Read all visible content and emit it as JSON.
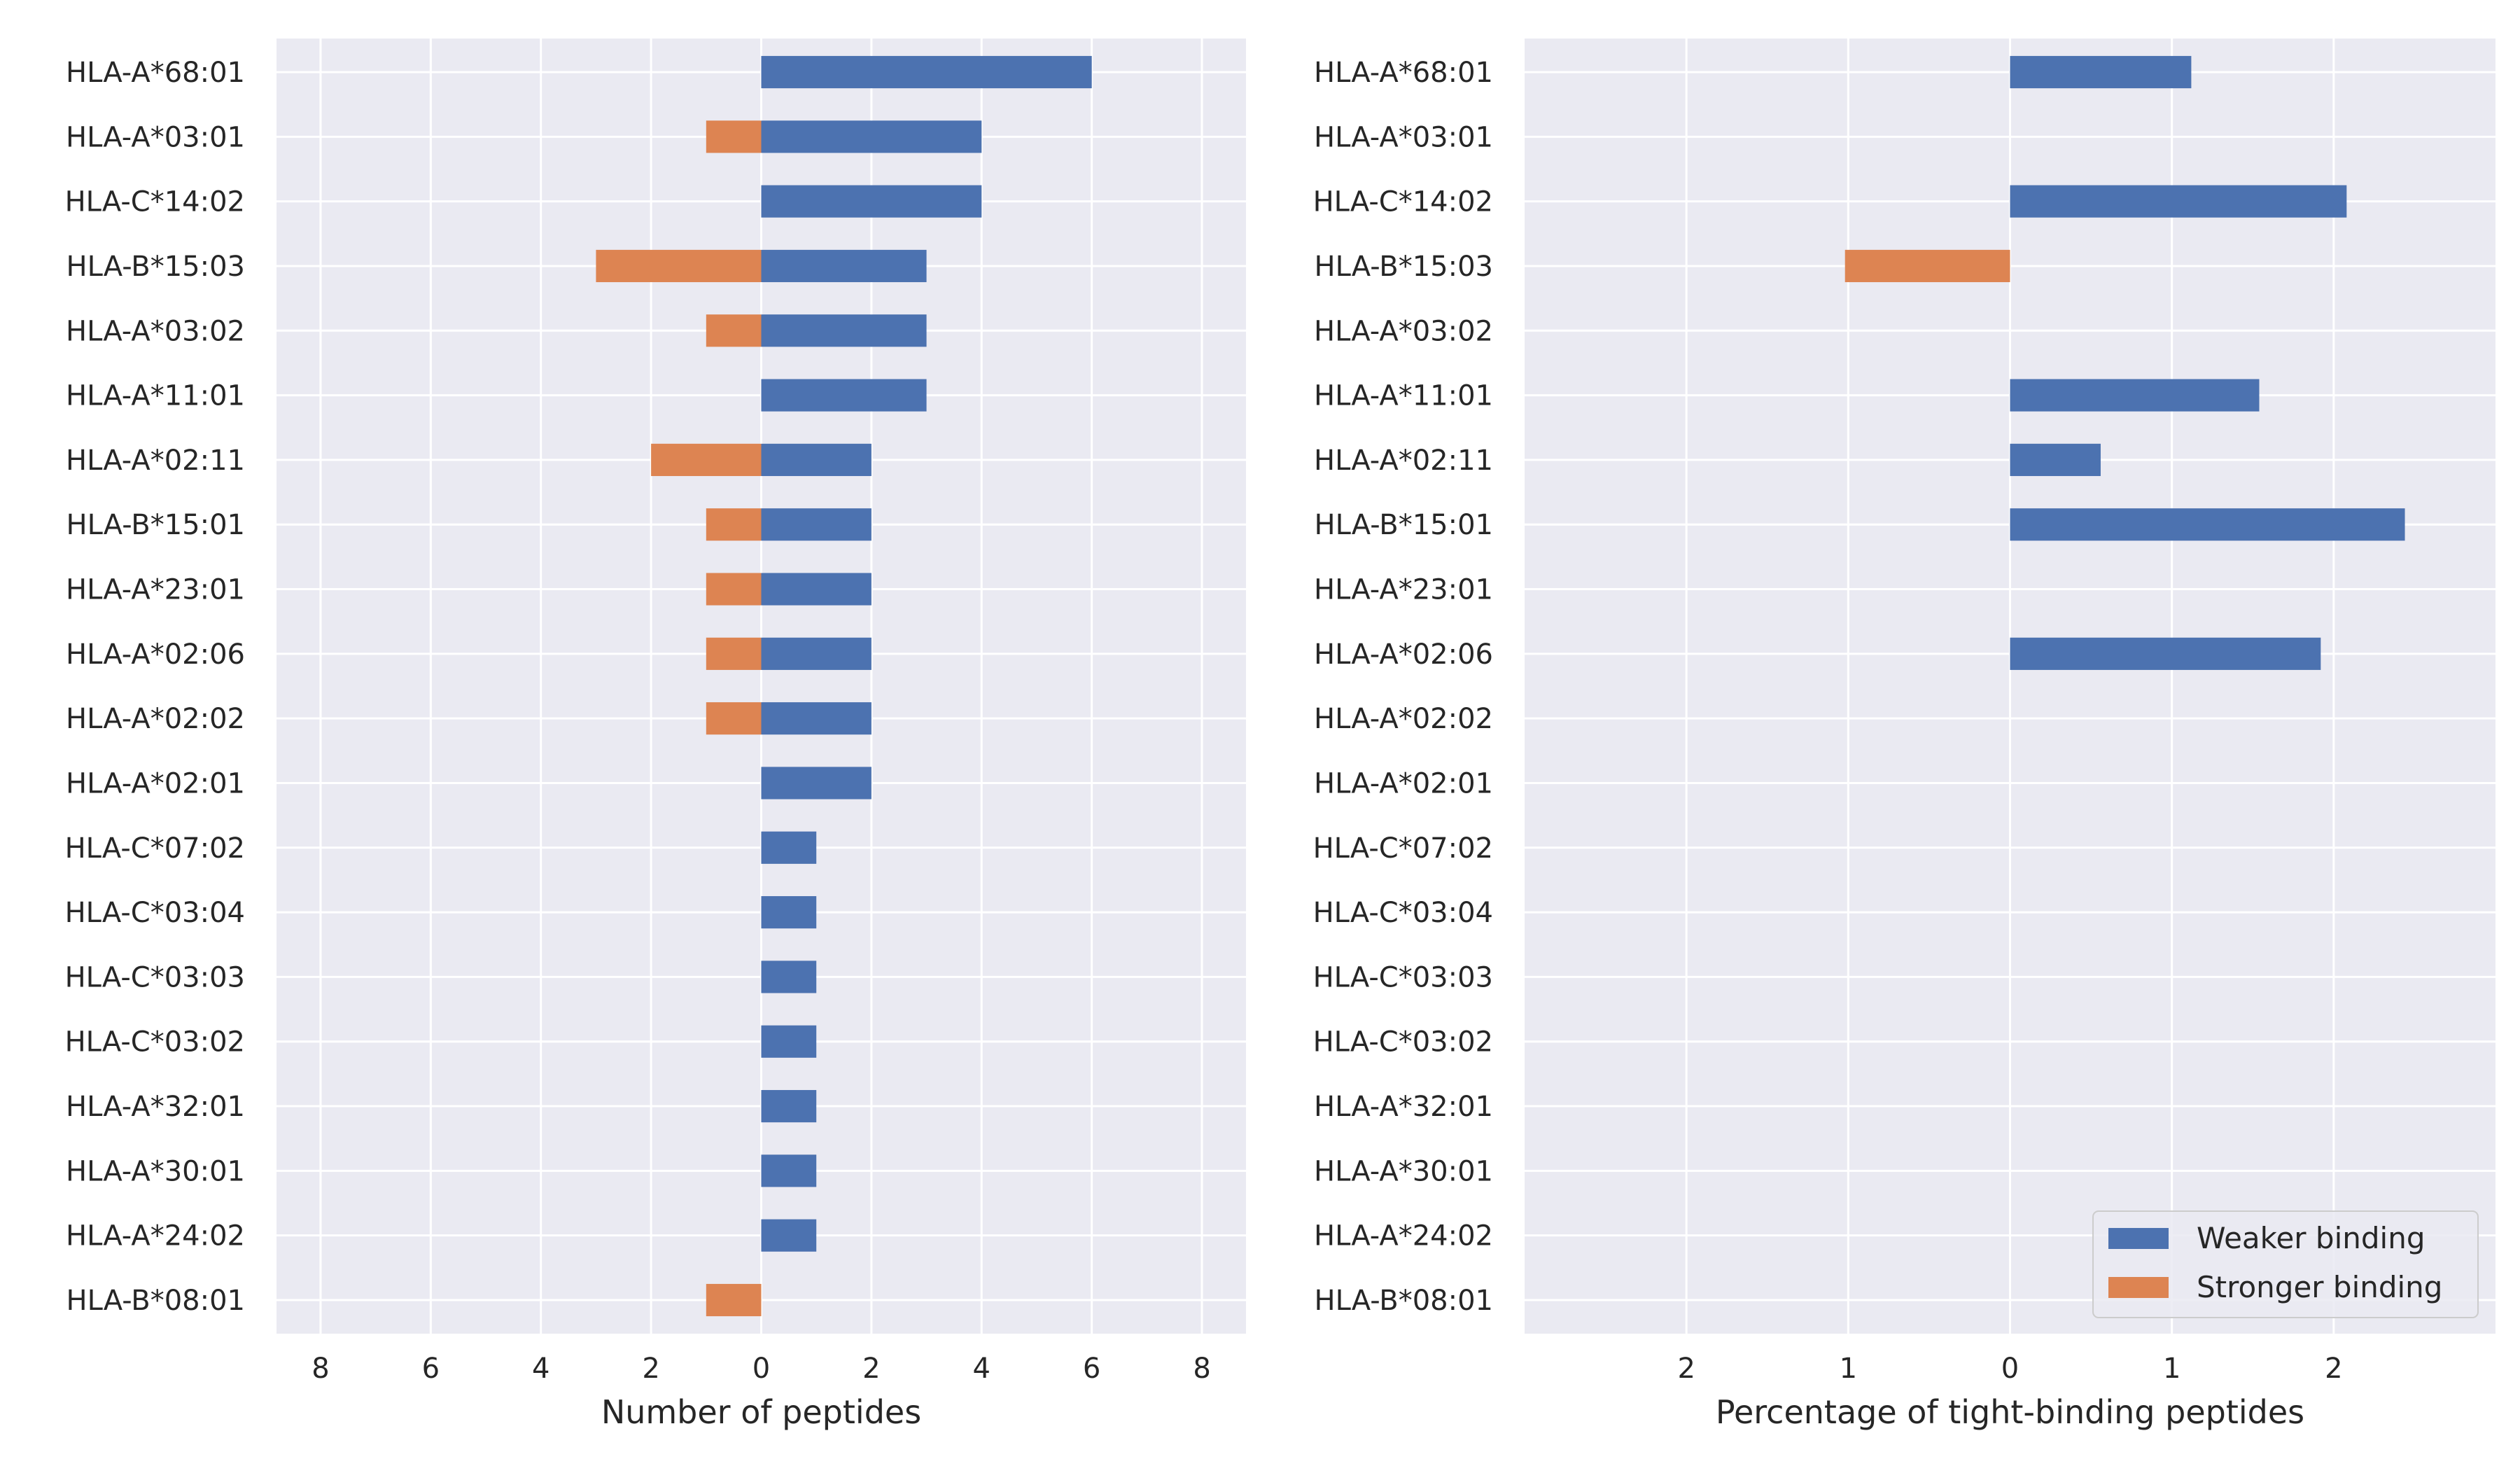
{
  "chart_data": [
    {
      "type": "bar",
      "orientation": "horizontal",
      "title": "",
      "xlabel": "Number of peptides",
      "ylabel": "",
      "xlim": [
        -8.8,
        8.8
      ],
      "xticks": [
        -8,
        -6,
        -4,
        -2,
        0,
        2,
        4,
        6,
        8
      ],
      "xtick_labels": [
        "8",
        "6",
        "4",
        "2",
        "0",
        "2",
        "4",
        "6",
        "8"
      ],
      "grid": true,
      "categories": [
        "HLA-A*68:01",
        "HLA-A*03:01",
        "HLA-C*14:02",
        "HLA-B*15:03",
        "HLA-A*03:02",
        "HLA-A*11:01",
        "HLA-A*02:11",
        "HLA-B*15:01",
        "HLA-A*23:01",
        "HLA-A*02:06",
        "HLA-A*02:02",
        "HLA-A*02:01",
        "HLA-C*07:02",
        "HLA-C*03:04",
        "HLA-C*03:03",
        "HLA-C*03:02",
        "HLA-A*32:01",
        "HLA-A*30:01",
        "HLA-A*24:02",
        "HLA-B*08:01"
      ],
      "series": [
        {
          "name": "Weaker binding",
          "color": "#4c72b0",
          "values": [
            6,
            4,
            4,
            3,
            3,
            3,
            2,
            2,
            2,
            2,
            2,
            2,
            1,
            1,
            1,
            1,
            1,
            1,
            1,
            0
          ]
        },
        {
          "name": "Stronger binding",
          "color": "#dd8452",
          "values": [
            0,
            -1,
            0,
            -3,
            -1,
            0,
            -2,
            -1,
            -1,
            -1,
            -1,
            0,
            0,
            0,
            0,
            0,
            0,
            0,
            0,
            -1
          ]
        }
      ]
    },
    {
      "type": "bar",
      "orientation": "horizontal",
      "title": "",
      "xlabel": "Percentage of tight-binding peptides",
      "ylabel": "",
      "xlim": [
        -3.0,
        3.0
      ],
      "xticks": [
        -2,
        -1,
        0,
        1,
        2
      ],
      "xtick_labels": [
        "2",
        "1",
        "0",
        "1",
        "2"
      ],
      "grid": true,
      "legend": {
        "placement": "bottom-right",
        "entries": [
          "Weaker binding",
          "Stronger binding"
        ]
      },
      "categories": [
        "HLA-A*68:01",
        "HLA-A*03:01",
        "HLA-C*14:02",
        "HLA-B*15:03",
        "HLA-A*03:02",
        "HLA-A*11:01",
        "HLA-A*02:11",
        "HLA-B*15:01",
        "HLA-A*23:01",
        "HLA-A*02:06",
        "HLA-A*02:02",
        "HLA-A*02:01",
        "HLA-C*07:02",
        "HLA-C*03:04",
        "HLA-C*03:03",
        "HLA-C*03:02",
        "HLA-A*32:01",
        "HLA-A*30:01",
        "HLA-A*24:02",
        "HLA-B*08:01"
      ],
      "series": [
        {
          "name": "Weaker binding",
          "color": "#4c72b0",
          "values": [
            1.12,
            0,
            2.08,
            0,
            0,
            1.54,
            0.56,
            2.44,
            0,
            1.92,
            0,
            0,
            0,
            0,
            0,
            0,
            0,
            0,
            0,
            0
          ]
        },
        {
          "name": "Stronger binding",
          "color": "#dd8452",
          "values": [
            0,
            0,
            0,
            -1.02,
            0,
            0,
            0,
            0,
            0,
            0,
            0,
            0,
            0,
            0,
            0,
            0,
            0,
            0,
            0,
            0
          ]
        }
      ]
    }
  ],
  "style": {
    "plot_background": "#eaeaf2",
    "grid_color": "#ffffff",
    "text_color": "#262626"
  }
}
